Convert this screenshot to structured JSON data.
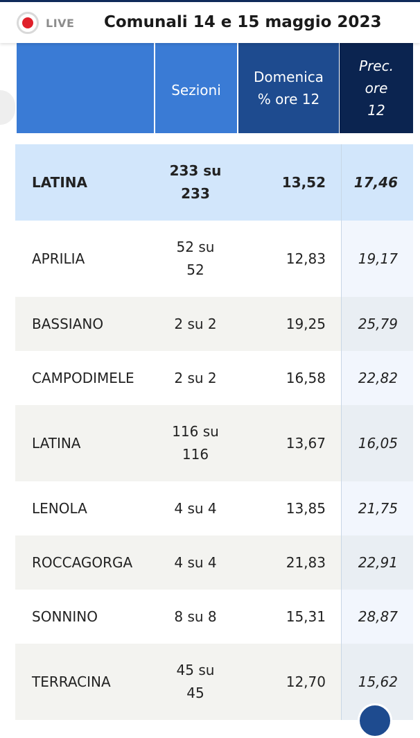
{
  "header": {
    "live_label": "LIVE",
    "title": "Comunali 14 e 15 maggio 2023"
  },
  "columns": {
    "sezioni": "Sezioni",
    "domenica_line1": "Domenica",
    "domenica_line2": "% ore 12",
    "prec_line1": "Prec.",
    "prec_line2": "ore",
    "prec_line3": "12"
  },
  "total": {
    "name": "LATINA",
    "sez1": "233 su",
    "sez2": "233",
    "dom": "13,52",
    "prec": "17,46"
  },
  "rows": [
    {
      "name": "APRILIA",
      "sez1": "52 su",
      "sez2": "52",
      "dom": "12,83",
      "prec": "19,17"
    },
    {
      "name": "BASSIANO",
      "sez1": "2 su 2",
      "sez2": "",
      "dom": "19,25",
      "prec": "25,79"
    },
    {
      "name": "CAMPODIMELE",
      "sez1": "2 su 2",
      "sez2": "",
      "dom": "16,58",
      "prec": "22,82"
    },
    {
      "name": "LATINA",
      "sez1": "116 su",
      "sez2": "116",
      "dom": "13,67",
      "prec": "16,05"
    },
    {
      "name": "LENOLA",
      "sez1": "4 su 4",
      "sez2": "",
      "dom": "13,85",
      "prec": "21,75"
    },
    {
      "name": "ROCCAGORGA",
      "sez1": "4 su 4",
      "sez2": "",
      "dom": "21,83",
      "prec": "22,91"
    },
    {
      "name": "SONNINO",
      "sez1": "8 su 8",
      "sez2": "",
      "dom": "15,31",
      "prec": "28,87"
    },
    {
      "name": "TERRACINA",
      "sez1": "45 su",
      "sez2": "45",
      "dom": "12,70",
      "prec": "15,62"
    }
  ],
  "colors": {
    "accent": "#3a7bd5",
    "dark": "#1e4b8f",
    "darker": "#0b2450",
    "live": "#e0202a"
  }
}
